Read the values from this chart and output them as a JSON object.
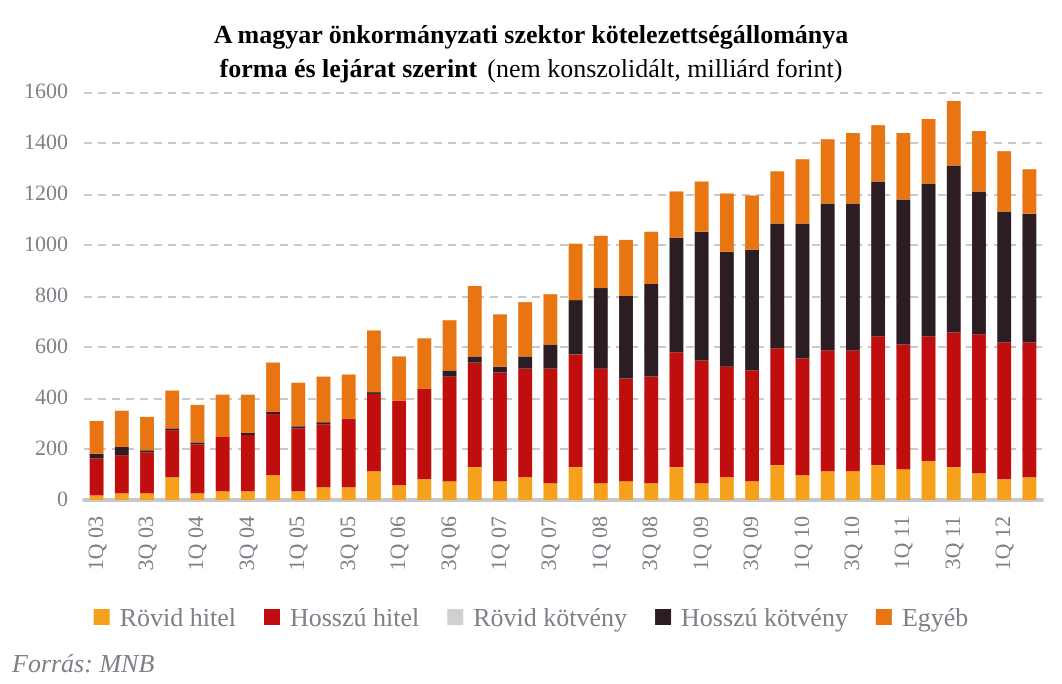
{
  "chart_data": {
    "type": "bar",
    "stacked": true,
    "title": "A magyar önkormányzati szektor kötelezettségállománya\nforma és lejárat szerint",
    "subtitle": "(nem konszolidált, milliárd forint)",
    "categories": [
      "1Q 03",
      null,
      "3Q 03",
      null,
      "1Q 04",
      null,
      "3Q 04",
      null,
      "1Q 05",
      null,
      "3Q 05",
      null,
      "1Q 06",
      null,
      "3Q 06",
      null,
      "1Q 07",
      null,
      "3Q 07",
      null,
      "1Q 08",
      null,
      "3Q 08",
      null,
      "1Q 09",
      null,
      "3Q 09",
      null,
      "1Q 10",
      null,
      "3Q 10",
      null,
      "1Q 11",
      null,
      "3Q 11",
      null,
      "1Q 12",
      null
    ],
    "series": [
      {
        "name": "Rövid hitel",
        "color": "#f5a11c",
        "values": [
          18,
          26,
          26,
          89,
          26,
          34,
          34,
          97,
          34,
          50,
          50,
          113,
          58,
          81,
          74,
          129,
          74,
          89,
          66,
          129,
          66,
          74,
          66,
          129,
          66,
          89,
          74,
          137,
          97,
          113,
          113,
          137,
          121,
          153,
          129,
          105,
          81,
          89
        ]
      },
      {
        "name": "Hosszú hitel",
        "color": "#c00d0d",
        "values": [
          145,
          150,
          161,
          185,
          192,
          213,
          221,
          240,
          247,
          247,
          268,
          303,
          331,
          356,
          410,
          410,
          426,
          426,
          449,
          442,
          449,
          402,
          418,
          450,
          481,
          434,
          434,
          458,
          458,
          474,
          474,
          505,
          489,
          489,
          528,
          545,
          537,
          529
        ]
      },
      {
        "name": "Rövid kötvény",
        "color": "#d0d0d0",
        "values": [
          0,
          0,
          0,
          0,
          0,
          0,
          0,
          0,
          0,
          0,
          0,
          0,
          0,
          0,
          0,
          null,
          null,
          0,
          0,
          0,
          0,
          0,
          0,
          0,
          0,
          0,
          0,
          0,
          0,
          0,
          0,
          0,
          0,
          0,
          0,
          0,
          0,
          0
        ]
      },
      {
        "name": "Hosszú kötvény",
        "color": "#2b1d22",
        "values": [
          18,
          32,
          8,
          7,
          8,
          0,
          8,
          8,
          8,
          8,
          0,
          7,
          0,
          0,
          24,
          24,
          23,
          48,
          95,
          213,
          316,
          324,
          363,
          449,
          505,
          450,
          473,
          489,
          529,
          576,
          576,
          607,
          568,
          599,
          655,
          560,
          513,
          505
        ]
      },
      {
        "name": "Egyéb",
        "color": "#e87511",
        "values": [
          129,
          142,
          131,
          148,
          147,
          166,
          150,
          194,
          171,
          179,
          174,
          242,
          174,
          197,
          197,
          276,
          205,
          213,
          197,
          221,
          205,
          220,
          205,
          182,
          197,
          229,
          213,
          205,
          252,
          252,
          276,
          221,
          261,
          253,
          253,
          237,
          237,
          174
        ]
      }
    ],
    "ylim": [
      0,
      1600
    ],
    "yticks": [
      0,
      200,
      400,
      600,
      800,
      1000,
      1200,
      1400,
      1600
    ],
    "grid": "y",
    "legend": "bottom",
    "annotations": [
      "Forrás: MNB"
    ]
  }
}
